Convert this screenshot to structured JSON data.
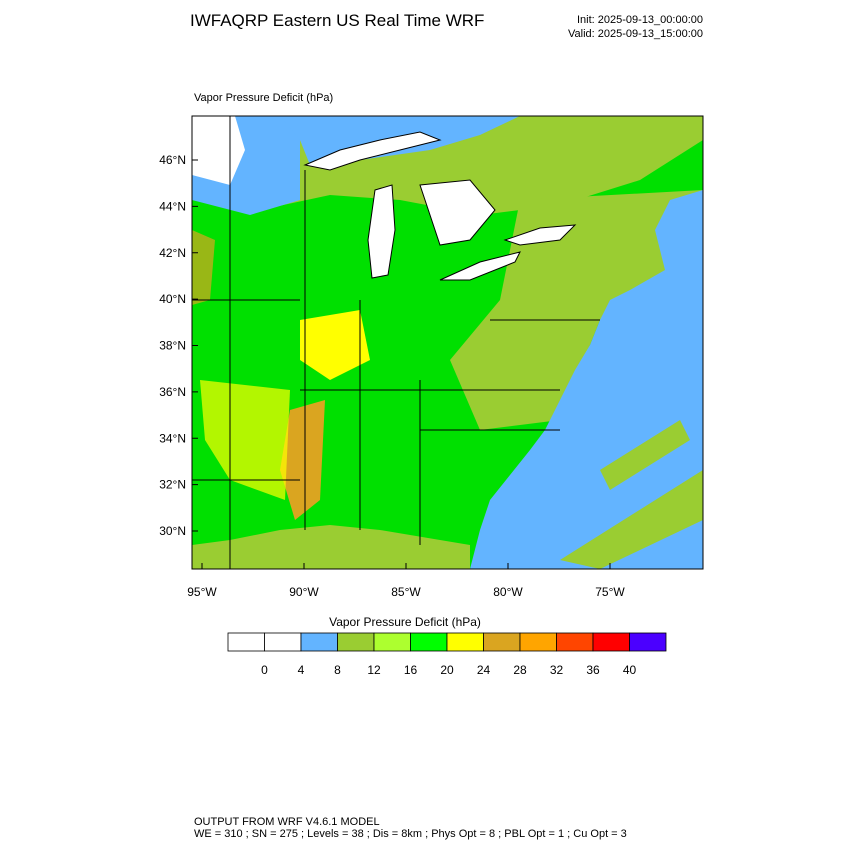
{
  "header": {
    "title": "IWFAQRP Eastern US Real Time WRF",
    "init": "Init: 2025-09-13_00:00:00",
    "valid": "Valid: 2025-09-13_15:00:00"
  },
  "map": {
    "field_label": "Vapor Pressure Deficit   (hPa)",
    "lat_ticks": [
      {
        "value": 46,
        "label": "46°N"
      },
      {
        "value": 44,
        "label": "44°N"
      },
      {
        "value": 42,
        "label": "42°N"
      },
      {
        "value": 40,
        "label": "40°N"
      },
      {
        "value": 38,
        "label": "38°N"
      },
      {
        "value": 36,
        "label": "36°N"
      },
      {
        "value": 34,
        "label": "34°N"
      },
      {
        "value": 32,
        "label": "32°N"
      },
      {
        "value": 30,
        "label": "30°N"
      }
    ],
    "lon_ticks": [
      {
        "value": -95,
        "label": "95°W"
      },
      {
        "value": -90,
        "label": "90°W"
      },
      {
        "value": -85,
        "label": "85°W"
      },
      {
        "value": -80,
        "label": "80°W"
      },
      {
        "value": -75,
        "label": "75°W"
      }
    ]
  },
  "colorbar": {
    "title": "Vapor Pressure Deficit  (hPa)",
    "levels": [
      0,
      4,
      8,
      12,
      16,
      20,
      24,
      28,
      32,
      36,
      40
    ],
    "colors": [
      "#ffffff",
      "#ffffff",
      "#63b4ff",
      "#9acd32",
      "#adff2f",
      "#00ff00",
      "#ffff00",
      "#daa520",
      "#ffa500",
      "#ff4500",
      "#ff0000",
      "#4b00ff"
    ]
  },
  "footer": {
    "line1": "OUTPUT FROM WRF V4.6.1 MODEL",
    "line2": "WE = 310 ; SN = 275 ; Levels = 38 ; Dis = 8km ; Phys Opt = 8 ; PBL Opt = 1 ; Cu Opt = 3"
  }
}
